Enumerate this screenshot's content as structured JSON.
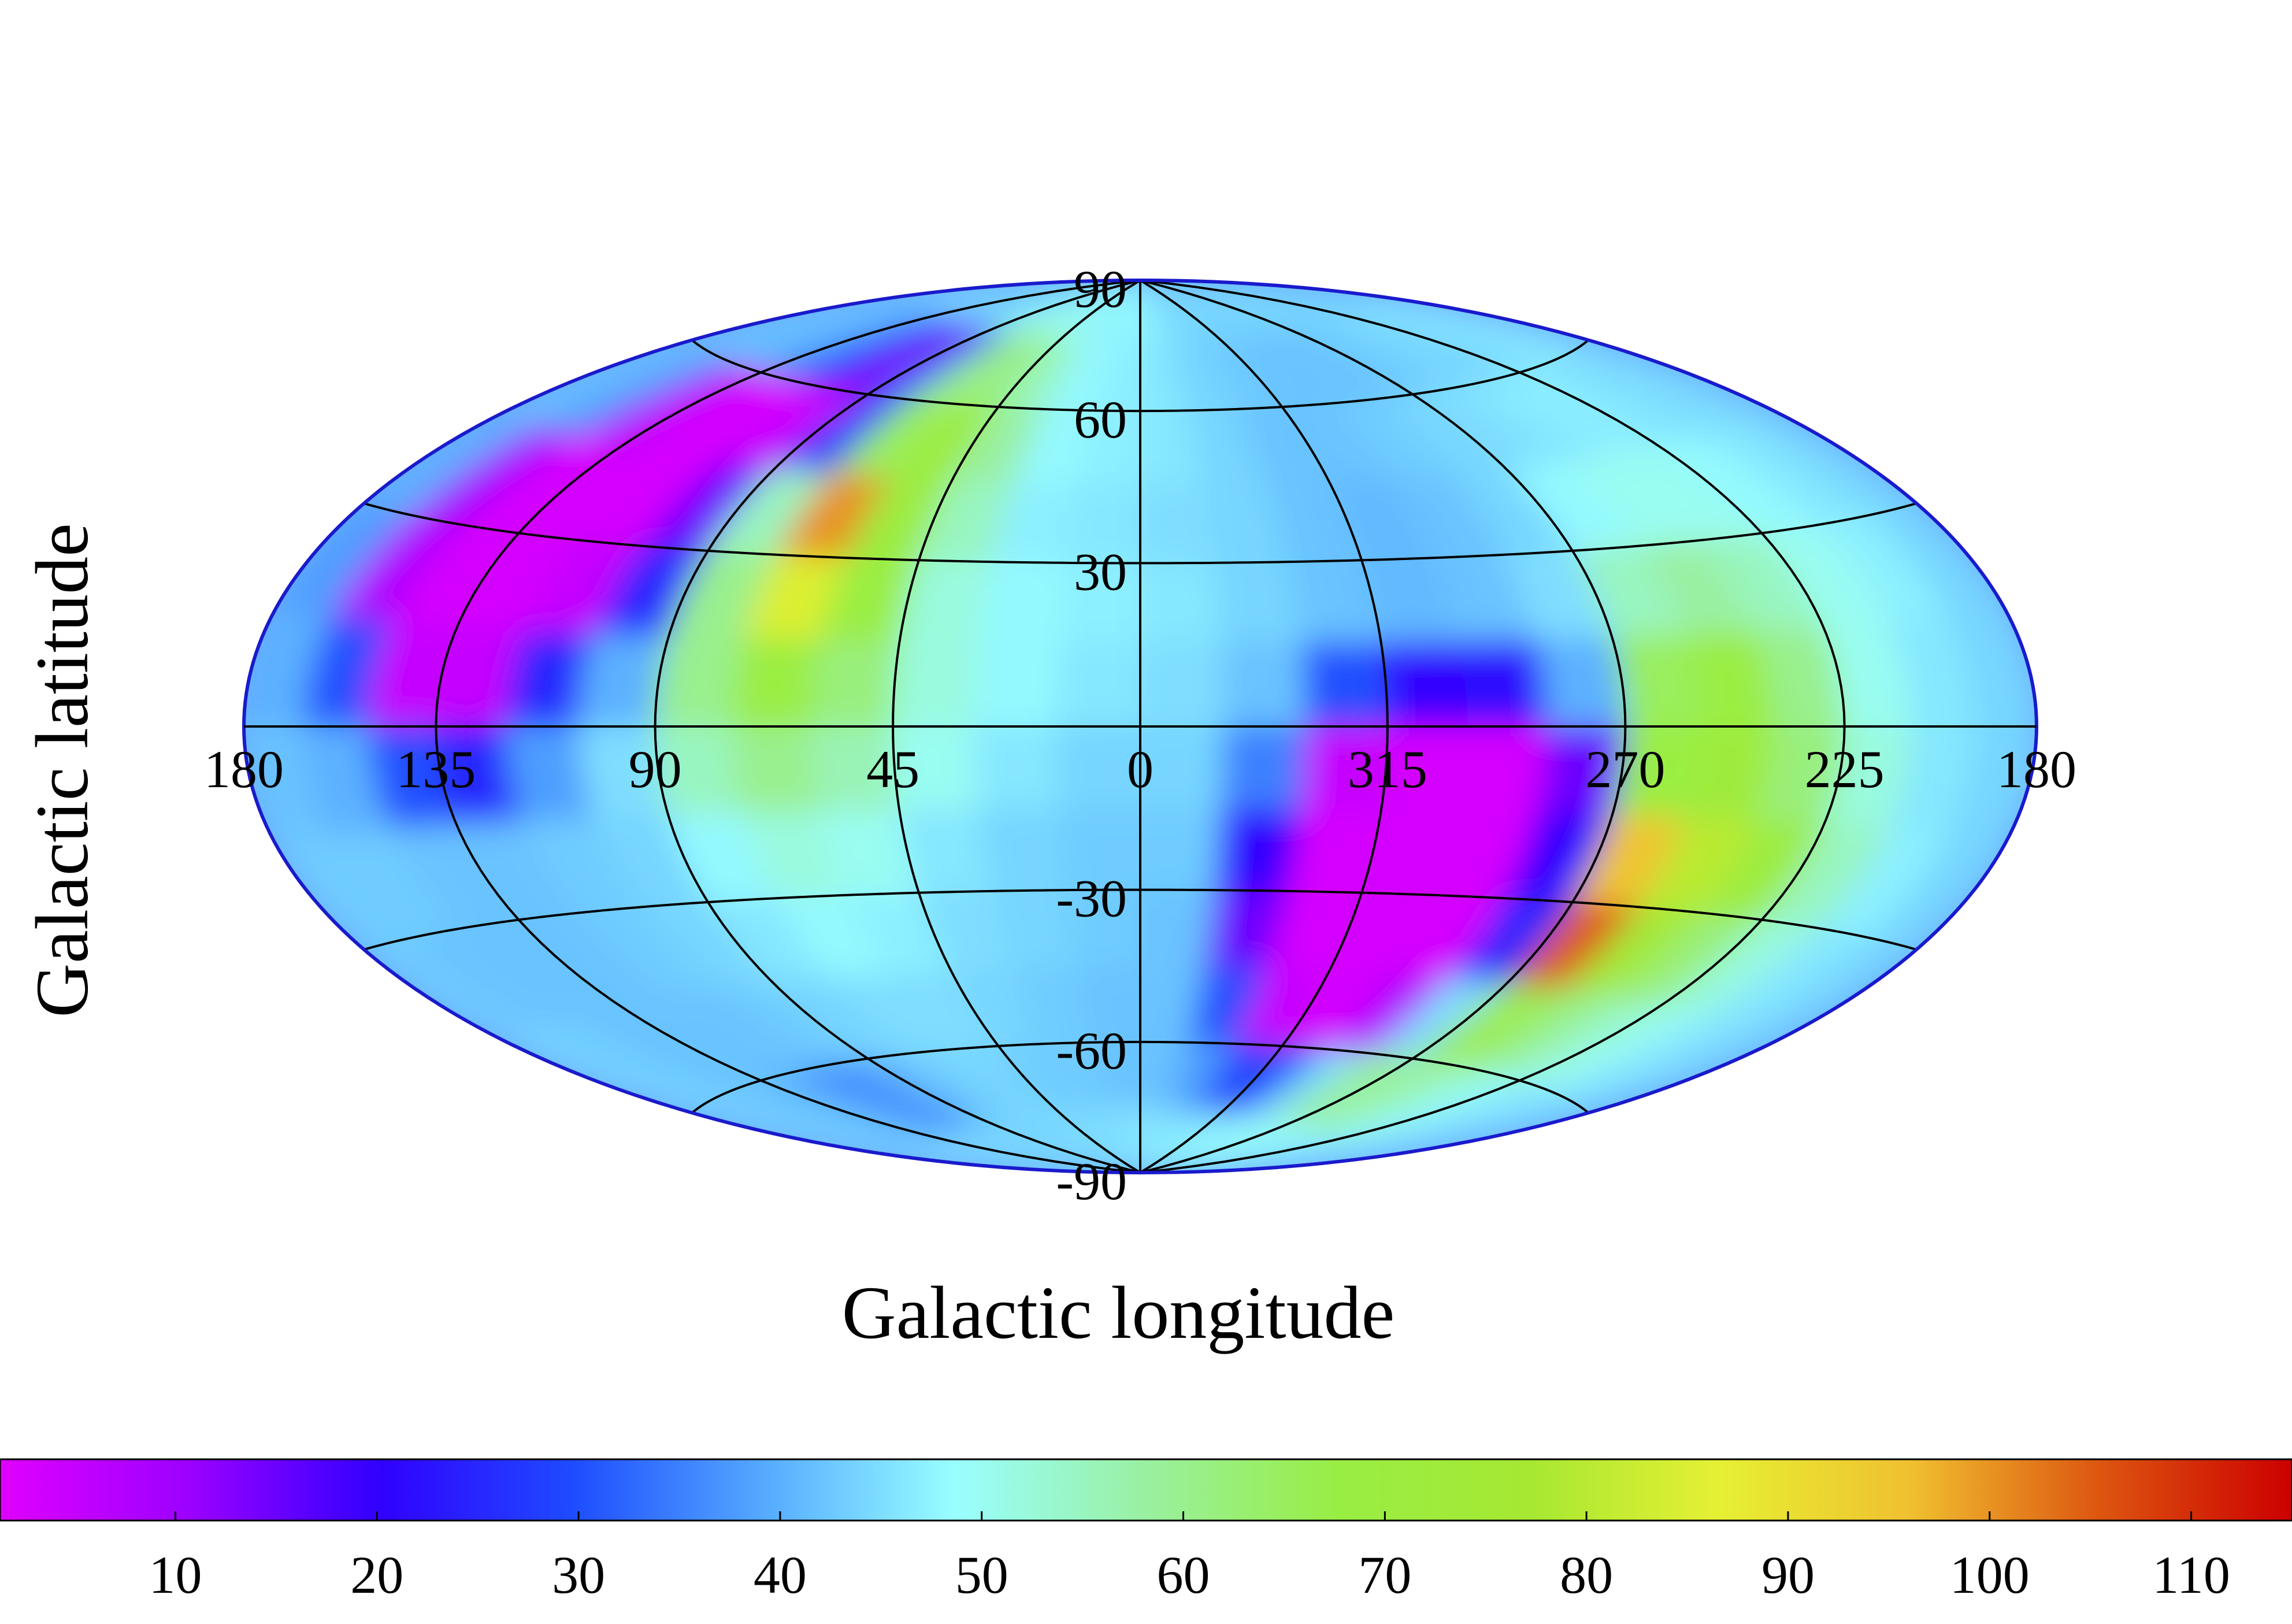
{
  "chart_data": {
    "type": "map",
    "projection": "hammer",
    "xlabel": "Galactic longitude",
    "ylabel": "Galactic latitude",
    "xlim": [
      180,
      -180
    ],
    "xticks": [
      180,
      135,
      90,
      45,
      0,
      {
        "value": -45,
        "label": "315"
      },
      {
        "value": -90,
        "label": "270"
      },
      {
        "value": -135,
        "label": "225"
      },
      {
        "value": -180,
        "label": "180"
      }
    ],
    "ylim": [
      -90,
      90
    ],
    "yticks": [
      90,
      60,
      30,
      -30,
      -60,
      -90
    ],
    "grid": true,
    "lon": [
      172.5,
      157.5,
      142.5,
      127.5,
      112.5,
      97.5,
      82.5,
      67.5,
      52.5,
      37.5,
      22.5,
      7.5,
      -7.5,
      -22.5,
      -37.5,
      -52.5,
      -67.5,
      -82.5,
      -97.5,
      -112.5,
      -127.5,
      -142.5,
      -157.5,
      -172.5
    ],
    "lat": [
      82.5,
      67.5,
      52.5,
      37.5,
      22.5,
      7.5,
      -7.5,
      -22.5,
      -37.5,
      -52.5,
      -67.5,
      -82.5
    ],
    "values": [
      [
        44,
        44,
        44,
        44,
        42,
        44,
        50,
        52,
        50,
        48,
        47,
        48,
        47,
        45,
        44,
        44,
        44,
        44,
        44,
        44,
        44,
        44,
        44,
        44
      ],
      [
        42,
        42,
        40,
        35,
        20,
        12,
        30,
        60,
        62,
        55,
        48,
        47,
        46,
        44,
        43,
        42,
        42,
        42,
        43,
        44,
        44,
        45,
        46,
        45
      ],
      [
        42,
        38,
        8,
        3,
        3,
        5,
        28,
        65,
        70,
        58,
        48,
        47,
        46,
        44,
        42,
        42,
        43,
        44,
        45,
        46,
        47,
        46,
        45,
        44
      ],
      [
        40,
        10,
        3,
        3,
        3,
        15,
        55,
        100,
        70,
        55,
        47,
        46,
        45,
        44,
        42,
        41,
        42,
        44,
        48,
        50,
        50,
        48,
        46,
        44
      ],
      [
        38,
        8,
        3,
        3,
        5,
        25,
        60,
        85,
        68,
        52,
        48,
        47,
        46,
        44,
        42,
        41,
        42,
        45,
        55,
        58,
        55,
        50,
        47,
        44
      ],
      [
        40,
        30,
        5,
        5,
        25,
        40,
        60,
        68,
        62,
        52,
        48,
        46,
        45,
        42,
        30,
        20,
        22,
        40,
        65,
        68,
        60,
        50,
        46,
        44
      ],
      [
        42,
        40,
        30,
        25,
        38,
        45,
        55,
        60,
        56,
        50,
        46,
        44,
        44,
        35,
        5,
        3,
        3,
        15,
        68,
        72,
        62,
        52,
        46,
        44
      ],
      [
        43,
        43,
        42,
        42,
        43,
        44,
        48,
        52,
        50,
        46,
        44,
        43,
        43,
        20,
        3,
        3,
        3,
        20,
        95,
        80,
        70,
        55,
        47,
        44
      ],
      [
        43,
        42,
        42,
        42,
        43,
        44,
        46,
        48,
        47,
        45,
        44,
        43,
        42,
        15,
        3,
        3,
        3,
        25,
        105,
        75,
        62,
        52,
        46,
        44
      ],
      [
        44,
        43,
        42,
        42,
        42,
        43,
        44,
        45,
        45,
        44,
        43,
        42,
        42,
        30,
        5,
        3,
        8,
        45,
        70,
        62,
        55,
        50,
        46,
        44
      ],
      [
        44,
        43,
        42,
        40,
        35,
        38,
        42,
        44,
        44,
        43,
        43,
        42,
        42,
        38,
        28,
        30,
        45,
        58,
        60,
        55,
        50,
        47,
        45,
        44
      ],
      [
        45,
        45,
        44,
        44,
        44,
        44,
        44,
        44,
        45,
        45,
        45,
        46,
        46,
        46,
        46,
        47,
        48,
        50,
        50,
        48,
        47,
        46,
        45,
        45
      ]
    ],
    "colorbar": {
      "clim": [
        1.3,
        115
      ],
      "ticks": [
        10,
        20,
        30,
        40,
        50,
        60,
        70,
        80,
        90,
        100,
        110
      ],
      "colormap": [
        "#e000ff",
        "#9b00ff",
        "#3000ff",
        "#1e4cff",
        "#55aaff",
        "#99ffff",
        "#99f0a0",
        "#99ee44",
        "#a6e833",
        "#e6f033",
        "#f0c030",
        "#dd5510",
        "#cc0000"
      ]
    }
  }
}
